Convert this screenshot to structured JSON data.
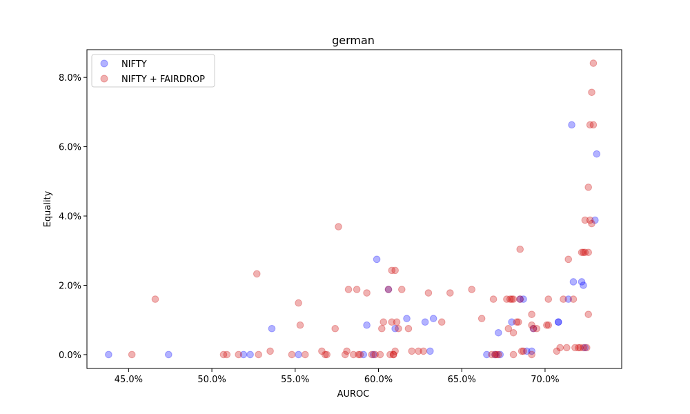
{
  "chart_data": {
    "type": "scatter",
    "title": "german",
    "xlabel": "AUROC",
    "ylabel": "Equality",
    "xlim": [
      42.5,
      74.6
    ],
    "ylim": [
      -0.4,
      8.8
    ],
    "x_ticks": [
      45,
      50,
      55,
      60,
      65,
      70
    ],
    "x_tick_labels": [
      "45.0%",
      "50.0%",
      "55.0%",
      "60.0%",
      "65.0%",
      "70.0%"
    ],
    "y_ticks": [
      0,
      2,
      4,
      6,
      8
    ],
    "y_tick_labels": [
      "0.0%",
      "2.0%",
      "4.0%",
      "6.0%",
      "8.0%"
    ],
    "grid": false,
    "legend_position": "top-left",
    "series": [
      {
        "name": "NIFTY",
        "color": "#0000ff",
        "points": [
          [
            43.8,
            0.0
          ],
          [
            47.4,
            0.0
          ],
          [
            51.9,
            0.0
          ],
          [
            52.3,
            0.0
          ],
          [
            53.6,
            0.75
          ],
          [
            55.2,
            0.0
          ],
          [
            59.1,
            0.0
          ],
          [
            59.3,
            0.85
          ],
          [
            59.7,
            0.0
          ],
          [
            59.9,
            2.75
          ],
          [
            60.6,
            1.88
          ],
          [
            61.0,
            0.75
          ],
          [
            61.7,
            1.04
          ],
          [
            62.8,
            0.94
          ],
          [
            63.1,
            0.1
          ],
          [
            63.3,
            1.04
          ],
          [
            66.5,
            0.0
          ],
          [
            67.0,
            0.0
          ],
          [
            67.2,
            0.63
          ],
          [
            67.3,
            0.0
          ],
          [
            68.0,
            0.94
          ],
          [
            68.5,
            1.6
          ],
          [
            68.7,
            1.6
          ],
          [
            68.9,
            0.1
          ],
          [
            69.2,
            0.1
          ],
          [
            69.3,
            0.75
          ],
          [
            70.8,
            0.94
          ],
          [
            70.8,
            0.94
          ],
          [
            71.4,
            1.6
          ],
          [
            71.6,
            6.63
          ],
          [
            71.7,
            2.1
          ],
          [
            72.2,
            2.1
          ],
          [
            72.3,
            2.0
          ],
          [
            72.4,
            0.2
          ],
          [
            73.0,
            3.88
          ],
          [
            73.1,
            5.79
          ]
        ]
      },
      {
        "name": "NIFTY + FAIRDROP",
        "color": "#cc0000",
        "points": [
          [
            45.2,
            0.0
          ],
          [
            46.6,
            1.6
          ],
          [
            50.7,
            0.0
          ],
          [
            50.9,
            0.0
          ],
          [
            51.6,
            0.0
          ],
          [
            52.7,
            2.33
          ],
          [
            52.8,
            0.0
          ],
          [
            53.5,
            0.1
          ],
          [
            54.8,
            0.0
          ],
          [
            55.2,
            1.49
          ],
          [
            55.3,
            0.85
          ],
          [
            55.6,
            0.0
          ],
          [
            56.6,
            0.1
          ],
          [
            56.8,
            0.0
          ],
          [
            56.9,
            0.0
          ],
          [
            57.4,
            0.75
          ],
          [
            57.6,
            3.69
          ],
          [
            58.0,
            0.0
          ],
          [
            58.1,
            0.1
          ],
          [
            58.2,
            1.88
          ],
          [
            58.5,
            0.0
          ],
          [
            58.7,
            1.88
          ],
          [
            58.8,
            0.0
          ],
          [
            58.9,
            0.0
          ],
          [
            59.3,
            1.78
          ],
          [
            59.6,
            0.0
          ],
          [
            59.8,
            0.0
          ],
          [
            60.1,
            0.0
          ],
          [
            60.2,
            0.75
          ],
          [
            60.3,
            0.94
          ],
          [
            60.6,
            1.88
          ],
          [
            60.7,
            0.0
          ],
          [
            60.8,
            2.43
          ],
          [
            60.8,
            0.94
          ],
          [
            60.9,
            0.0
          ],
          [
            60.9,
            0.0
          ],
          [
            61.0,
            0.1
          ],
          [
            61.0,
            2.43
          ],
          [
            61.1,
            0.94
          ],
          [
            61.2,
            0.75
          ],
          [
            61.4,
            1.88
          ],
          [
            61.8,
            0.75
          ],
          [
            62.0,
            0.1
          ],
          [
            62.4,
            0.1
          ],
          [
            62.7,
            0.1
          ],
          [
            63.0,
            1.78
          ],
          [
            63.8,
            0.94
          ],
          [
            64.3,
            1.78
          ],
          [
            65.6,
            1.88
          ],
          [
            66.2,
            1.04
          ],
          [
            66.8,
            0.0
          ],
          [
            66.9,
            1.6
          ],
          [
            67.0,
            0.0
          ],
          [
            67.1,
            0.0
          ],
          [
            67.2,
            0.0
          ],
          [
            67.7,
            1.6
          ],
          [
            67.8,
            0.75
          ],
          [
            67.9,
            1.6
          ],
          [
            68.0,
            1.6
          ],
          [
            68.1,
            0.0
          ],
          [
            68.1,
            0.63
          ],
          [
            68.1,
            1.6
          ],
          [
            68.3,
            0.94
          ],
          [
            68.4,
            0.94
          ],
          [
            68.5,
            1.6
          ],
          [
            68.5,
            3.04
          ],
          [
            68.6,
            0.1
          ],
          [
            68.7,
            0.1
          ],
          [
            69.2,
            0.0
          ],
          [
            69.2,
            0.85
          ],
          [
            69.2,
            1.16
          ],
          [
            69.3,
            0.75
          ],
          [
            69.5,
            0.75
          ],
          [
            70.1,
            0.85
          ],
          [
            70.2,
            1.6
          ],
          [
            70.2,
            0.85
          ],
          [
            70.7,
            0.1
          ],
          [
            70.9,
            0.2
          ],
          [
            71.1,
            1.6
          ],
          [
            71.3,
            0.2
          ],
          [
            71.4,
            2.75
          ],
          [
            71.7,
            1.6
          ],
          [
            71.8,
            0.2
          ],
          [
            72.0,
            0.2
          ],
          [
            72.1,
            0.2
          ],
          [
            72.2,
            2.95
          ],
          [
            72.3,
            0.2
          ],
          [
            72.3,
            2.95
          ],
          [
            72.4,
            3.88
          ],
          [
            72.4,
            2.95
          ],
          [
            72.5,
            0.2
          ],
          [
            72.6,
            2.95
          ],
          [
            72.6,
            1.16
          ],
          [
            72.6,
            4.83
          ],
          [
            72.7,
            3.88
          ],
          [
            72.7,
            6.63
          ],
          [
            72.8,
            3.78
          ],
          [
            72.8,
            7.57
          ],
          [
            72.9,
            6.63
          ],
          [
            72.9,
            8.41
          ]
        ]
      }
    ]
  }
}
